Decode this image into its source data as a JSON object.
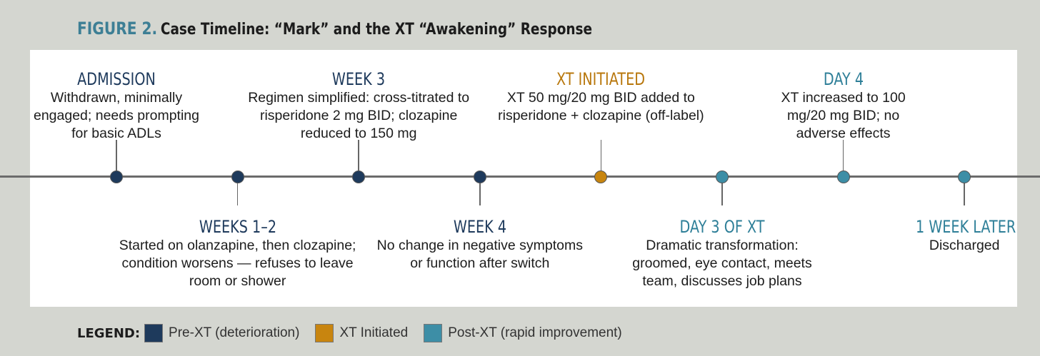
{
  "figure": {
    "label": "FIGURE 2.",
    "title": "Case Timeline: “Mark” and the XT “Awakening” Response"
  },
  "events": [
    {
      "heading": "ADMISSION",
      "description": "Withdrawn, minimally engaged; needs prompting for basic ADLs",
      "phase": "pre",
      "position": "above"
    },
    {
      "heading": "WEEKS 1–2",
      "description": "Started on olanzapine, then clozapine; condition worsens — refuses to leave room or shower",
      "phase": "pre",
      "position": "below"
    },
    {
      "heading": "WEEK 3",
      "description": "Regimen simplified: cross-titrated to risperidone 2 mg BID; clozapine reduced to 150 mg",
      "phase": "pre",
      "position": "above"
    },
    {
      "heading": "WEEK 4",
      "description": "No change in negative symptoms or function after switch",
      "phase": "pre",
      "position": "below"
    },
    {
      "heading": "XT INITIATED",
      "description": "XT 50 mg/20 mg BID added to risperidone + clozapine (off-label)",
      "phase": "xt",
      "position": "above"
    },
    {
      "heading": "DAY 3 OF XT",
      "description": "Dramatic transformation: groomed, eye contact, meets team, discusses job plans",
      "phase": "post",
      "position": "below"
    },
    {
      "heading": "DAY 4",
      "description": "XT increased to 100 mg/20 mg BID; no adverse effects",
      "phase": "post",
      "position": "above"
    },
    {
      "heading": "1 WEEK LATER",
      "description": "Discharged",
      "phase": "post",
      "position": "below"
    }
  ],
  "legend": {
    "title": "LEGEND:",
    "items": [
      {
        "label": "Pre-XT (deterioration)",
        "color": "#1e3a5c"
      },
      {
        "label": "XT Initiated",
        "color": "#c8850f"
      },
      {
        "label": "Post-XT (rapid improvement)",
        "color": "#3d8ea6"
      }
    ]
  }
}
